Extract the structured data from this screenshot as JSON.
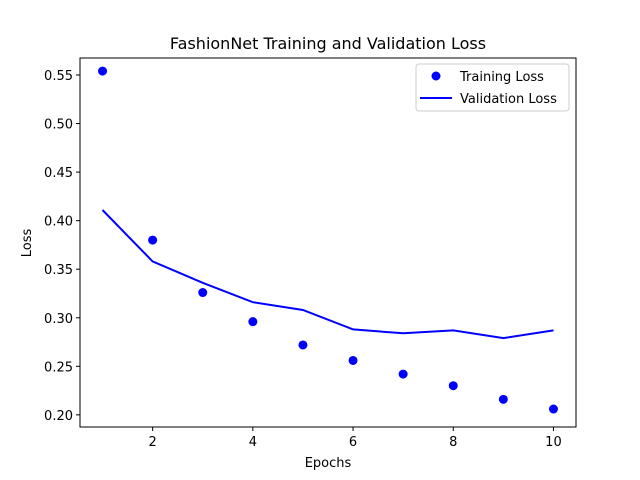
{
  "chart_data": {
    "type": "scatter",
    "title": "FashionNet Training and Validation Loss",
    "xlabel": "Epochs",
    "ylabel": "Loss",
    "xlim": [
      0.55,
      10.45
    ],
    "ylim": [
      0.1875,
      0.5675
    ],
    "xticks": [
      2,
      4,
      6,
      8,
      10
    ],
    "xtick_labels": [
      "2",
      "4",
      "6",
      "8",
      "10"
    ],
    "yticks": [
      0.2,
      0.25,
      0.3,
      0.35,
      0.4,
      0.45,
      0.5,
      0.55
    ],
    "ytick_labels": [
      "0.20",
      "0.25",
      "0.30",
      "0.35",
      "0.40",
      "0.45",
      "0.50",
      "0.55"
    ],
    "grid": false,
    "legend_position": "top-right",
    "series": [
      {
        "name": "Training Loss",
        "kind": "scatter",
        "color": "#0000ff",
        "x": [
          1,
          2,
          3,
          4,
          5,
          6,
          7,
          8,
          9,
          10
        ],
        "y": [
          0.554,
          0.38,
          0.326,
          0.296,
          0.272,
          0.256,
          0.242,
          0.23,
          0.216,
          0.206
        ]
      },
      {
        "name": "Validation Loss",
        "kind": "line",
        "color": "#0000ff",
        "x": [
          1,
          2,
          3,
          4,
          5,
          6,
          7,
          8,
          9,
          10
        ],
        "y": [
          0.411,
          0.358,
          0.336,
          0.316,
          0.308,
          0.288,
          0.284,
          0.287,
          0.279,
          0.287
        ]
      }
    ]
  }
}
